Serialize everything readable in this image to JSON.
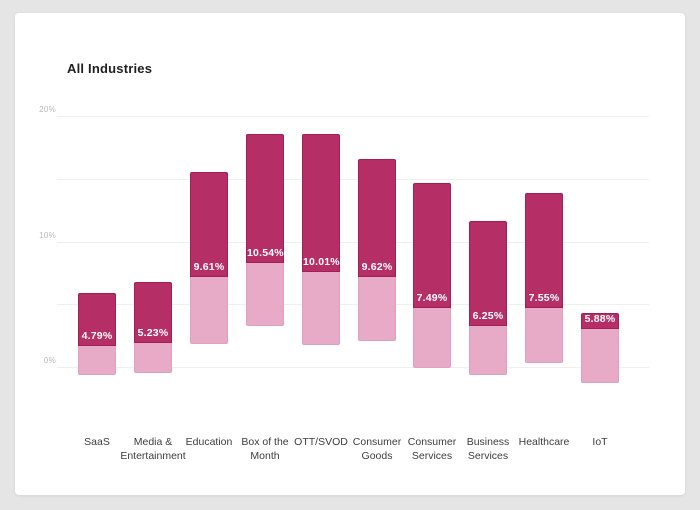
{
  "page": {
    "background_color": "#e5e5e5",
    "card_color": "#ffffff"
  },
  "chart_data": {
    "type": "bar",
    "title": "All Industries",
    "xlabel": "",
    "ylabel": "",
    "ylim": [
      -1.5,
      21
    ],
    "grid": true,
    "gridline_values": [
      0,
      5,
      10,
      15,
      20
    ],
    "yticks": [
      {
        "value": 0,
        "label": "0%"
      },
      {
        "value": 10,
        "label": "10%"
      },
      {
        "value": 20,
        "label": "20%"
      }
    ],
    "legend": "none",
    "colors": {
      "upper_fill": "#b52f66",
      "upper_border": "#a21f55",
      "lower_fill": "#e7aac7",
      "lower_border": "#dfa0c0",
      "label_text": "#ffffff"
    },
    "categories": [
      "SaaS",
      "Media & Entertainment",
      "Education",
      "Box of the Month",
      "OTT/SVOD",
      "Consumer Goods",
      "Consumer Services",
      "Business Services",
      "Healthcare",
      "IoT"
    ],
    "bars": [
      {
        "category": "SaaS",
        "lines": [
          "SaaS"
        ],
        "label": "4.79%",
        "value": 4.79,
        "upper_top": 5.9,
        "split": 1.7,
        "lower_bottom": -0.6
      },
      {
        "category": "Media & Entertainment",
        "lines": [
          "Media &",
          "Entertainment"
        ],
        "label": "5.23%",
        "value": 5.23,
        "upper_top": 6.8,
        "split": 1.9,
        "lower_bottom": -0.5
      },
      {
        "category": "Education",
        "lines": [
          "Education"
        ],
        "label": "9.61%",
        "value": 9.61,
        "upper_top": 15.5,
        "split": 7.2,
        "lower_bottom": 1.8
      },
      {
        "category": "Box of the Month",
        "lines": [
          "Box of the",
          "Month"
        ],
        "label": "10.54%",
        "value": 10.54,
        "upper_top": 18.6,
        "split": 8.3,
        "lower_bottom": 3.3
      },
      {
        "category": "OTT/SVOD",
        "lines": [
          "OTT/SVOD"
        ],
        "label": "10.01%",
        "value": 10.01,
        "upper_top": 18.6,
        "split": 7.6,
        "lower_bottom": 1.75
      },
      {
        "category": "Consumer Goods",
        "lines": [
          "Consumer",
          "Goods"
        ],
        "label": "9.62%",
        "value": 9.62,
        "upper_top": 16.6,
        "split": 7.2,
        "lower_bottom": 2.1
      },
      {
        "category": "Consumer Services",
        "lines": [
          "Consumer",
          "Services"
        ],
        "label": "7.49%",
        "value": 7.49,
        "upper_top": 14.7,
        "split": 4.7,
        "lower_bottom": -0.1
      },
      {
        "category": "Business Services",
        "lines": [
          "Business",
          "Services"
        ],
        "label": "6.25%",
        "value": 6.25,
        "upper_top": 11.6,
        "split": 3.3,
        "lower_bottom": -0.6
      },
      {
        "category": "Healthcare",
        "lines": [
          "Healthcare"
        ],
        "label": "7.55%",
        "value": 7.55,
        "upper_top": 13.9,
        "split": 4.7,
        "lower_bottom": 0.3
      },
      {
        "category": "IoT",
        "lines": [
          "IoT"
        ],
        "label": "5.88%",
        "value": 5.88,
        "upper_top": 4.3,
        "split": 3.0,
        "lower_bottom": -1.3
      }
    ]
  }
}
